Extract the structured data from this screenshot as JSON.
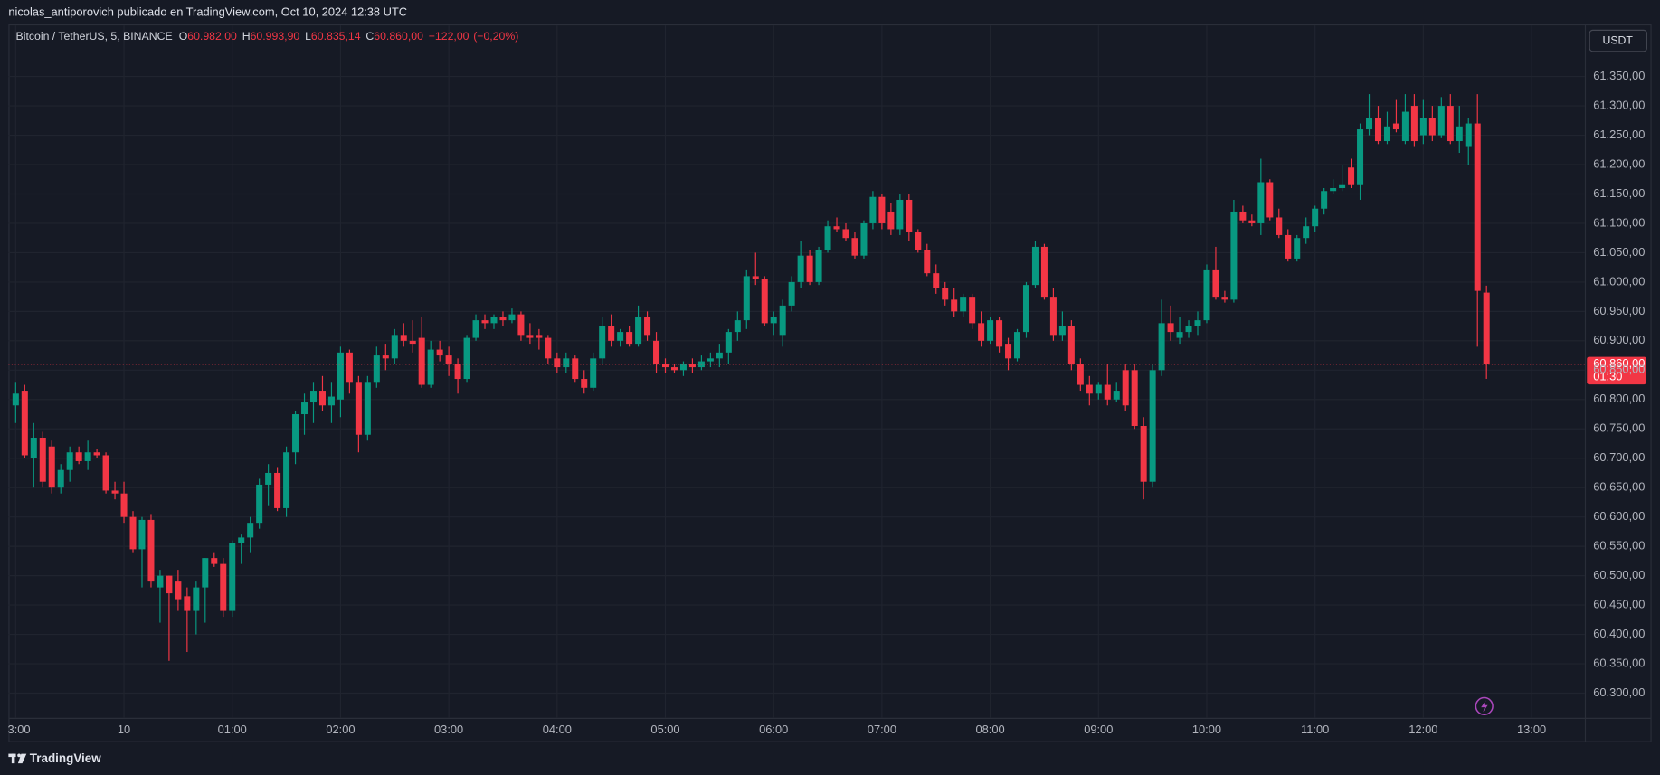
{
  "header": {
    "title": "nicolas_antiporovich publicado en TradingView.com, Oct 10, 2024 12:38 UTC"
  },
  "chart_data": {
    "type": "candlestick",
    "symbol": "Bitcoin / TetherUS, 5, BINANCE",
    "ohlc_legend": [
      {
        "key": "O",
        "value": 60982,
        "label": "60.982,00"
      },
      {
        "key": "H",
        "value": 60993.9,
        "label": "60.993,90"
      },
      {
        "key": "L",
        "value": 60835.14,
        "label": "60.835,14"
      },
      {
        "key": "C",
        "value": 60860,
        "label": "60.860,00"
      }
    ],
    "change": {
      "value": -122,
      "label": "−122,00"
    },
    "change_percent": {
      "value": -0.2,
      "label": "(−0,20%)"
    },
    "currency": "USDT",
    "up_color": "#089981",
    "down_color": "#f23645",
    "grid": true,
    "open": [
      60790,
      60815,
      60700,
      60735,
      60720,
      60650,
      60680,
      60710,
      60695,
      60710,
      60705,
      60645,
      60640,
      60600,
      60545,
      60595,
      60480,
      60500,
      60490,
      60465,
      60440,
      60480,
      60530,
      60520,
      60440,
      60555,
      60565,
      60590,
      60655,
      60675,
      60615,
      60710,
      60775,
      60795,
      60815,
      60790,
      60800,
      60880,
      60830,
      60740,
      60830,
      60875,
      60870,
      60910,
      60900,
      60905,
      60825,
      60885,
      60875,
      60860,
      60835,
      60905,
      60935,
      60930,
      60940,
      60935,
      60945,
      60910,
      60910,
      60905,
      60870,
      60855,
      60870,
      60835,
      60820,
      60870,
      60925,
      60900,
      60915,
      60895,
      60940,
      60900,
      60860,
      60855,
      60850,
      60860,
      60855,
      60865,
      60870,
      60880,
      60915,
      60935,
      61010,
      61005,
      60930,
      60910,
      60960,
      61000,
      61045,
      61000,
      61055,
      61095,
      61090,
      61075,
      61045,
      61100,
      61145,
      61120,
      61090,
      61140,
      61085,
      61055,
      61015,
      60990,
      60970,
      60950,
      60975,
      60930,
      60900,
      60935,
      60895,
      60870,
      60915,
      60995,
      61060,
      60975,
      60910,
      60925,
      60860,
      60825,
      60810,
      60825,
      60800,
      60850,
      60850,
      60755,
      60660,
      60850,
      60930,
      60905,
      60915,
      60925,
      60935,
      61020,
      60975,
      60970,
      61120,
      61105,
      61100,
      61170,
      61110,
      61080,
      61040,
      61075,
      61095,
      61125,
      61155,
      61160,
      61195,
      61165,
      61260,
      61280,
      61240,
      61270,
      61240,
      61300,
      61250,
      61280,
      61250,
      61300,
      61240,
      61230,
      61270,
      60982
    ],
    "high": [
      60830,
      60825,
      60760,
      60745,
      60730,
      60690,
      60720,
      60720,
      60730,
      60715,
      60710,
      60660,
      60660,
      60610,
      60600,
      60605,
      60510,
      60500,
      60510,
      60480,
      60490,
      60530,
      60540,
      60530,
      60560,
      60570,
      60600,
      60665,
      60690,
      60685,
      60720,
      60780,
      60810,
      60830,
      60840,
      60830,
      60890,
      60885,
      60840,
      60840,
      60890,
      60895,
      60920,
      60930,
      60935,
      60940,
      60900,
      60900,
      60890,
      60870,
      60910,
      60945,
      60945,
      60945,
      60950,
      60955,
      60950,
      60930,
      60920,
      60910,
      60880,
      60880,
      60875,
      60850,
      60880,
      60940,
      60945,
      60920,
      60925,
      60960,
      60950,
      60915,
      60870,
      60860,
      60865,
      60870,
      60875,
      60880,
      60895,
      60920,
      60950,
      61020,
      61050,
      61010,
      60950,
      60970,
      61010,
      61070,
      61055,
      61060,
      61105,
      61110,
      61100,
      61085,
      61105,
      61155,
      61150,
      61135,
      61150,
      61150,
      61090,
      61065,
      61030,
      61000,
      60990,
      60980,
      60980,
      60950,
      60940,
      60940,
      60905,
      60920,
      61000,
      61070,
      61065,
      60990,
      60950,
      60935,
      60870,
      60840,
      60830,
      60860,
      60830,
      60860,
      60860,
      60770,
      60860,
      60970,
      60960,
      60940,
      60935,
      60950,
      61030,
      61060,
      60985,
      61140,
      61130,
      61115,
      61210,
      61175,
      61125,
      61090,
      61080,
      61110,
      61130,
      61160,
      61175,
      61200,
      61210,
      61270,
      61320,
      61300,
      61290,
      61310,
      61320,
      61320,
      61310,
      61300,
      61315,
      61320,
      61300,
      61280,
      61320,
      60993.9
    ],
    "low": [
      60760,
      60700,
      60650,
      60650,
      60640,
      60640,
      60660,
      60690,
      60680,
      60700,
      60640,
      60630,
      60590,
      60540,
      60480,
      60480,
      60420,
      60355,
      60440,
      60370,
      60400,
      60420,
      60515,
      60430,
      60430,
      60520,
      60540,
      60580,
      60620,
      60610,
      60600,
      60690,
      60740,
      60760,
      60780,
      60760,
      60770,
      60810,
      60710,
      60730,
      60820,
      60850,
      60860,
      60890,
      60880,
      60820,
      60820,
      60865,
      60840,
      60810,
      60830,
      60900,
      60920,
      60920,
      60925,
      60930,
      60900,
      60895,
      60885,
      60860,
      60845,
      60845,
      60830,
      60810,
      60815,
      60860,
      60890,
      60890,
      60890,
      60890,
      60900,
      60845,
      60845,
      60845,
      60840,
      60845,
      60850,
      60855,
      60855,
      60860,
      60900,
      60920,
      60995,
      60925,
      60910,
      60890,
      60950,
      60990,
      60995,
      60995,
      61050,
      61085,
      61070,
      61040,
      61040,
      61090,
      61090,
      61080,
      61080,
      61070,
      61050,
      61010,
      60980,
      60960,
      60940,
      60940,
      60920,
      60890,
      60895,
      60880,
      60850,
      60865,
      60905,
      60990,
      60970,
      60900,
      60900,
      60850,
      60815,
      60790,
      60800,
      60790,
      60795,
      60780,
      60750,
      60630,
      60650,
      60840,
      60900,
      60895,
      60905,
      60910,
      60930,
      60970,
      60965,
      60965,
      61100,
      61095,
      61080,
      61105,
      61075,
      61035,
      61035,
      61065,
      61085,
      61115,
      61150,
      61155,
      61160,
      61140,
      61250,
      61235,
      61235,
      61255,
      61235,
      61230,
      61235,
      61240,
      61245,
      61235,
      61220,
      61200,
      60890,
      60835.14
    ],
    "close": [
      60810,
      60705,
      60735,
      60660,
      60650,
      60680,
      60710,
      60695,
      60710,
      60705,
      60645,
      60640,
      60600,
      60545,
      60595,
      60490,
      60500,
      60470,
      60460,
      60440,
      60480,
      60530,
      60520,
      60440,
      60555,
      60565,
      60590,
      60655,
      60675,
      60615,
      60710,
      60775,
      60795,
      60815,
      60790,
      60805,
      60880,
      60830,
      60740,
      60830,
      60875,
      60870,
      60910,
      60900,
      60895,
      60825,
      60885,
      60875,
      60860,
      60835,
      60905,
      60935,
      60930,
      60940,
      60935,
      60945,
      60910,
      60905,
      60905,
      60870,
      60855,
      60870,
      60835,
      60820,
      60870,
      60925,
      60900,
      60915,
      60895,
      60940,
      60910,
      60860,
      60855,
      60850,
      60860,
      60855,
      60865,
      60870,
      60880,
      60915,
      60935,
      61010,
      61005,
      60930,
      60940,
      60960,
      61000,
      61045,
      61000,
      61055,
      61095,
      61090,
      61075,
      61045,
      61100,
      61145,
      61100,
      61090,
      61140,
      61085,
      61055,
      61015,
      60990,
      60970,
      60950,
      60975,
      60930,
      60900,
      60935,
      60890,
      60870,
      60915,
      60995,
      61060,
      60975,
      60910,
      60925,
      60860,
      60825,
      60810,
      60825,
      60800,
      60815,
      60790,
      60755,
      60660,
      60850,
      60930,
      60915,
      60915,
      60925,
      60935,
      61020,
      60975,
      60970,
      61120,
      61105,
      61100,
      61170,
      61110,
      61080,
      61040,
      61075,
      61095,
      61125,
      61155,
      61160,
      61165,
      61165,
      61260,
      61280,
      61240,
      61265,
      61260,
      61290,
      61240,
      61280,
      61250,
      61300,
      61240,
      61265,
      61270,
      60985,
      60860
    ],
    "xlim": [
      -0.8,
      173.9
    ],
    "xticks": [
      {
        "value": 0,
        "label": "3:00"
      },
      {
        "value": 12,
        "label": "10"
      },
      {
        "value": 24,
        "label": "01:00"
      },
      {
        "value": 36,
        "label": "02:00"
      },
      {
        "value": 48,
        "label": "03:00"
      },
      {
        "value": 60,
        "label": "04:00"
      },
      {
        "value": 72,
        "label": "05:00"
      },
      {
        "value": 84,
        "label": "06:00"
      },
      {
        "value": 96,
        "label": "07:00"
      },
      {
        "value": 108,
        "label": "08:00"
      },
      {
        "value": 120,
        "label": "09:00"
      },
      {
        "value": 132,
        "label": "10:00"
      },
      {
        "value": 144,
        "label": "11:00"
      },
      {
        "value": 156,
        "label": "12:00"
      },
      {
        "value": 168,
        "label": "13:00"
      }
    ],
    "ylim": [
      60258,
      61437
    ],
    "yticks": [
      {
        "value": 61350,
        "label": "61.350,00"
      },
      {
        "value": 61300,
        "label": "61.300,00"
      },
      {
        "value": 61250,
        "label": "61.250,00"
      },
      {
        "value": 61200,
        "label": "61.200,00"
      },
      {
        "value": 61150,
        "label": "61.150,00"
      },
      {
        "value": 61100,
        "label": "61.100,00"
      },
      {
        "value": 61050,
        "label": "61.050,00"
      },
      {
        "value": 61000,
        "label": "61.000,00"
      },
      {
        "value": 60950,
        "label": "60.950,00"
      },
      {
        "value": 60900,
        "label": "60.900,00"
      },
      {
        "value": 60850,
        "label": "60.850,00"
      },
      {
        "value": 60800,
        "label": "60.800,00"
      },
      {
        "value": 60750,
        "label": "60.750,00"
      },
      {
        "value": 60700,
        "label": "60.700,00"
      },
      {
        "value": 60650,
        "label": "60.650,00"
      },
      {
        "value": 60600,
        "label": "60.600,00"
      },
      {
        "value": 60550,
        "label": "60.550,00"
      },
      {
        "value": 60500,
        "label": "60.500,00"
      },
      {
        "value": 60450,
        "label": "60.450,00"
      },
      {
        "value": 60400,
        "label": "60.400,00"
      },
      {
        "value": 60350,
        "label": "60.350,00"
      },
      {
        "value": 60300,
        "label": "60.300,00"
      }
    ],
    "last_price": {
      "value": 60860,
      "label": "60.860,00"
    },
    "countdown": "01:30"
  },
  "footer": {
    "brand": "TradingView"
  }
}
